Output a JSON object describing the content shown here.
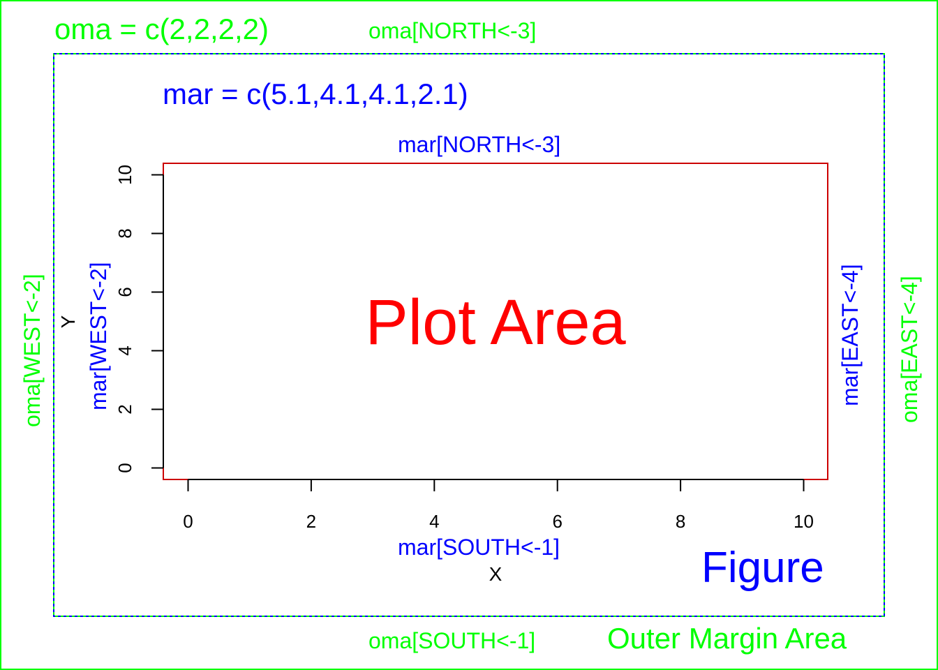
{
  "colors": {
    "outer": "#00ff00",
    "figure": "#0000ff",
    "plot": "#ff0000",
    "axis": "#000000"
  },
  "outer_margin": {
    "title": "oma = c(2,2,2,2)",
    "north": "oma[NORTH<-3]",
    "south": "oma[SOUTH<-1]",
    "west": "oma[WEST<-2]",
    "east": "oma[EAST<-4]",
    "area_label": "Outer Margin Area"
  },
  "figure_margin": {
    "title": "mar = c(5.1,4.1,4.1,2.1)",
    "north": "mar[NORTH<-3]",
    "south": "mar[SOUTH<-1]",
    "west": "mar[WEST<-2]",
    "east": "mar[EAST<-4]",
    "area_label": "Figure"
  },
  "plot_area": {
    "label": "Plot Area"
  },
  "chart_data": {
    "type": "scatter",
    "xlabel": "X",
    "ylabel": "Y",
    "xlim": [
      0,
      10
    ],
    "ylim": [
      0,
      10
    ],
    "x_ticks": [
      "0",
      "2",
      "4",
      "6",
      "8",
      "10"
    ],
    "y_ticks": [
      "0",
      "2",
      "4",
      "6",
      "8",
      "10"
    ],
    "points": []
  }
}
